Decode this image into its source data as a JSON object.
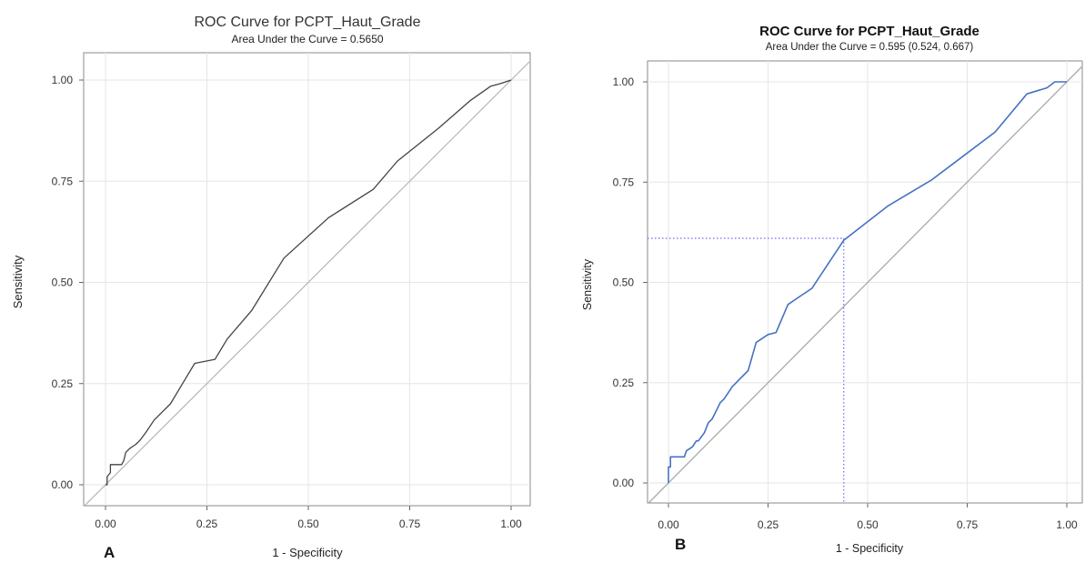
{
  "chart_data": [
    {
      "type": "line",
      "panel_label": "A",
      "title": "ROC Curve for PCPT_Haut_Grade",
      "subtitle": "Area Under the Curve = 0.5650",
      "xlabel": "1 - Specificity",
      "ylabel": "Sensitivity",
      "xlim": [
        0,
        1
      ],
      "ylim": [
        0,
        1
      ],
      "xticks": [
        "0.00",
        "0.25",
        "0.50",
        "0.75",
        "1.00"
      ],
      "yticks": [
        "0.00",
        "0.25",
        "0.50",
        "0.75",
        "1.00"
      ],
      "grid": true,
      "legend": "none",
      "line_color": "#444444",
      "reference_color": "#bbbbbb",
      "series": [
        {
          "x": [
            0,
            0.004,
            0.004,
            0.012,
            0.012,
            0.04,
            0.045,
            0.05,
            0.06,
            0.075,
            0.085,
            0.1,
            0.12,
            0.14,
            0.16,
            0.19,
            0.22,
            0.27,
            0.3,
            0.36,
            0.44,
            0.55,
            0.66,
            0.72,
            0.82,
            0.9,
            0.95,
            0.97,
            0.985,
            1.0
          ],
          "y": [
            0,
            0,
            0.02,
            0.03,
            0.05,
            0.05,
            0.06,
            0.08,
            0.09,
            0.1,
            0.11,
            0.13,
            0.16,
            0.18,
            0.2,
            0.25,
            0.3,
            0.31,
            0.36,
            0.43,
            0.56,
            0.66,
            0.73,
            0.8,
            0.88,
            0.95,
            0.985,
            0.99,
            0.995,
            1.0
          ]
        }
      ],
      "reference_line": [
        [
          0,
          0
        ],
        [
          1,
          1
        ]
      ]
    },
    {
      "type": "line",
      "panel_label": "B",
      "title": "ROC Curve for PCPT_Haut_Grade",
      "subtitle": "Area Under the Curve = 0.595 (0.524, 0.667)",
      "xlabel": "1 - Specificity",
      "ylabel": "Sensitivity",
      "xlim": [
        0,
        1
      ],
      "ylim": [
        0,
        1
      ],
      "xticks": [
        "0.00",
        "0.25",
        "0.50",
        "0.75",
        "1.00"
      ],
      "yticks": [
        "0.00",
        "0.25",
        "0.50",
        "0.75",
        "1.00"
      ],
      "grid": true,
      "legend": "none",
      "line_color": "#4472c4",
      "reference_color": "#aaaaaa",
      "cutoff_color": "#6a6aff",
      "series": [
        {
          "x": [
            0,
            0,
            0.005,
            0.005,
            0.04,
            0.045,
            0.06,
            0.07,
            0.075,
            0.09,
            0.1,
            0.11,
            0.13,
            0.14,
            0.16,
            0.18,
            0.2,
            0.22,
            0.25,
            0.27,
            0.3,
            0.33,
            0.36,
            0.44,
            0.55,
            0.66,
            0.72,
            0.82,
            0.9,
            0.95,
            0.97,
            1.0
          ],
          "y": [
            0,
            0.04,
            0.04,
            0.065,
            0.065,
            0.08,
            0.09,
            0.105,
            0.105,
            0.125,
            0.15,
            0.16,
            0.2,
            0.21,
            0.24,
            0.26,
            0.28,
            0.35,
            0.37,
            0.375,
            0.445,
            0.465,
            0.485,
            0.605,
            0.69,
            0.755,
            0.8,
            0.875,
            0.97,
            0.985,
            1.0,
            1.0
          ]
        }
      ],
      "reference_line": [
        [
          0,
          0
        ],
        [
          1,
          1
        ]
      ],
      "cutoff_point": {
        "x": 0.44,
        "y": 0.61
      }
    }
  ]
}
